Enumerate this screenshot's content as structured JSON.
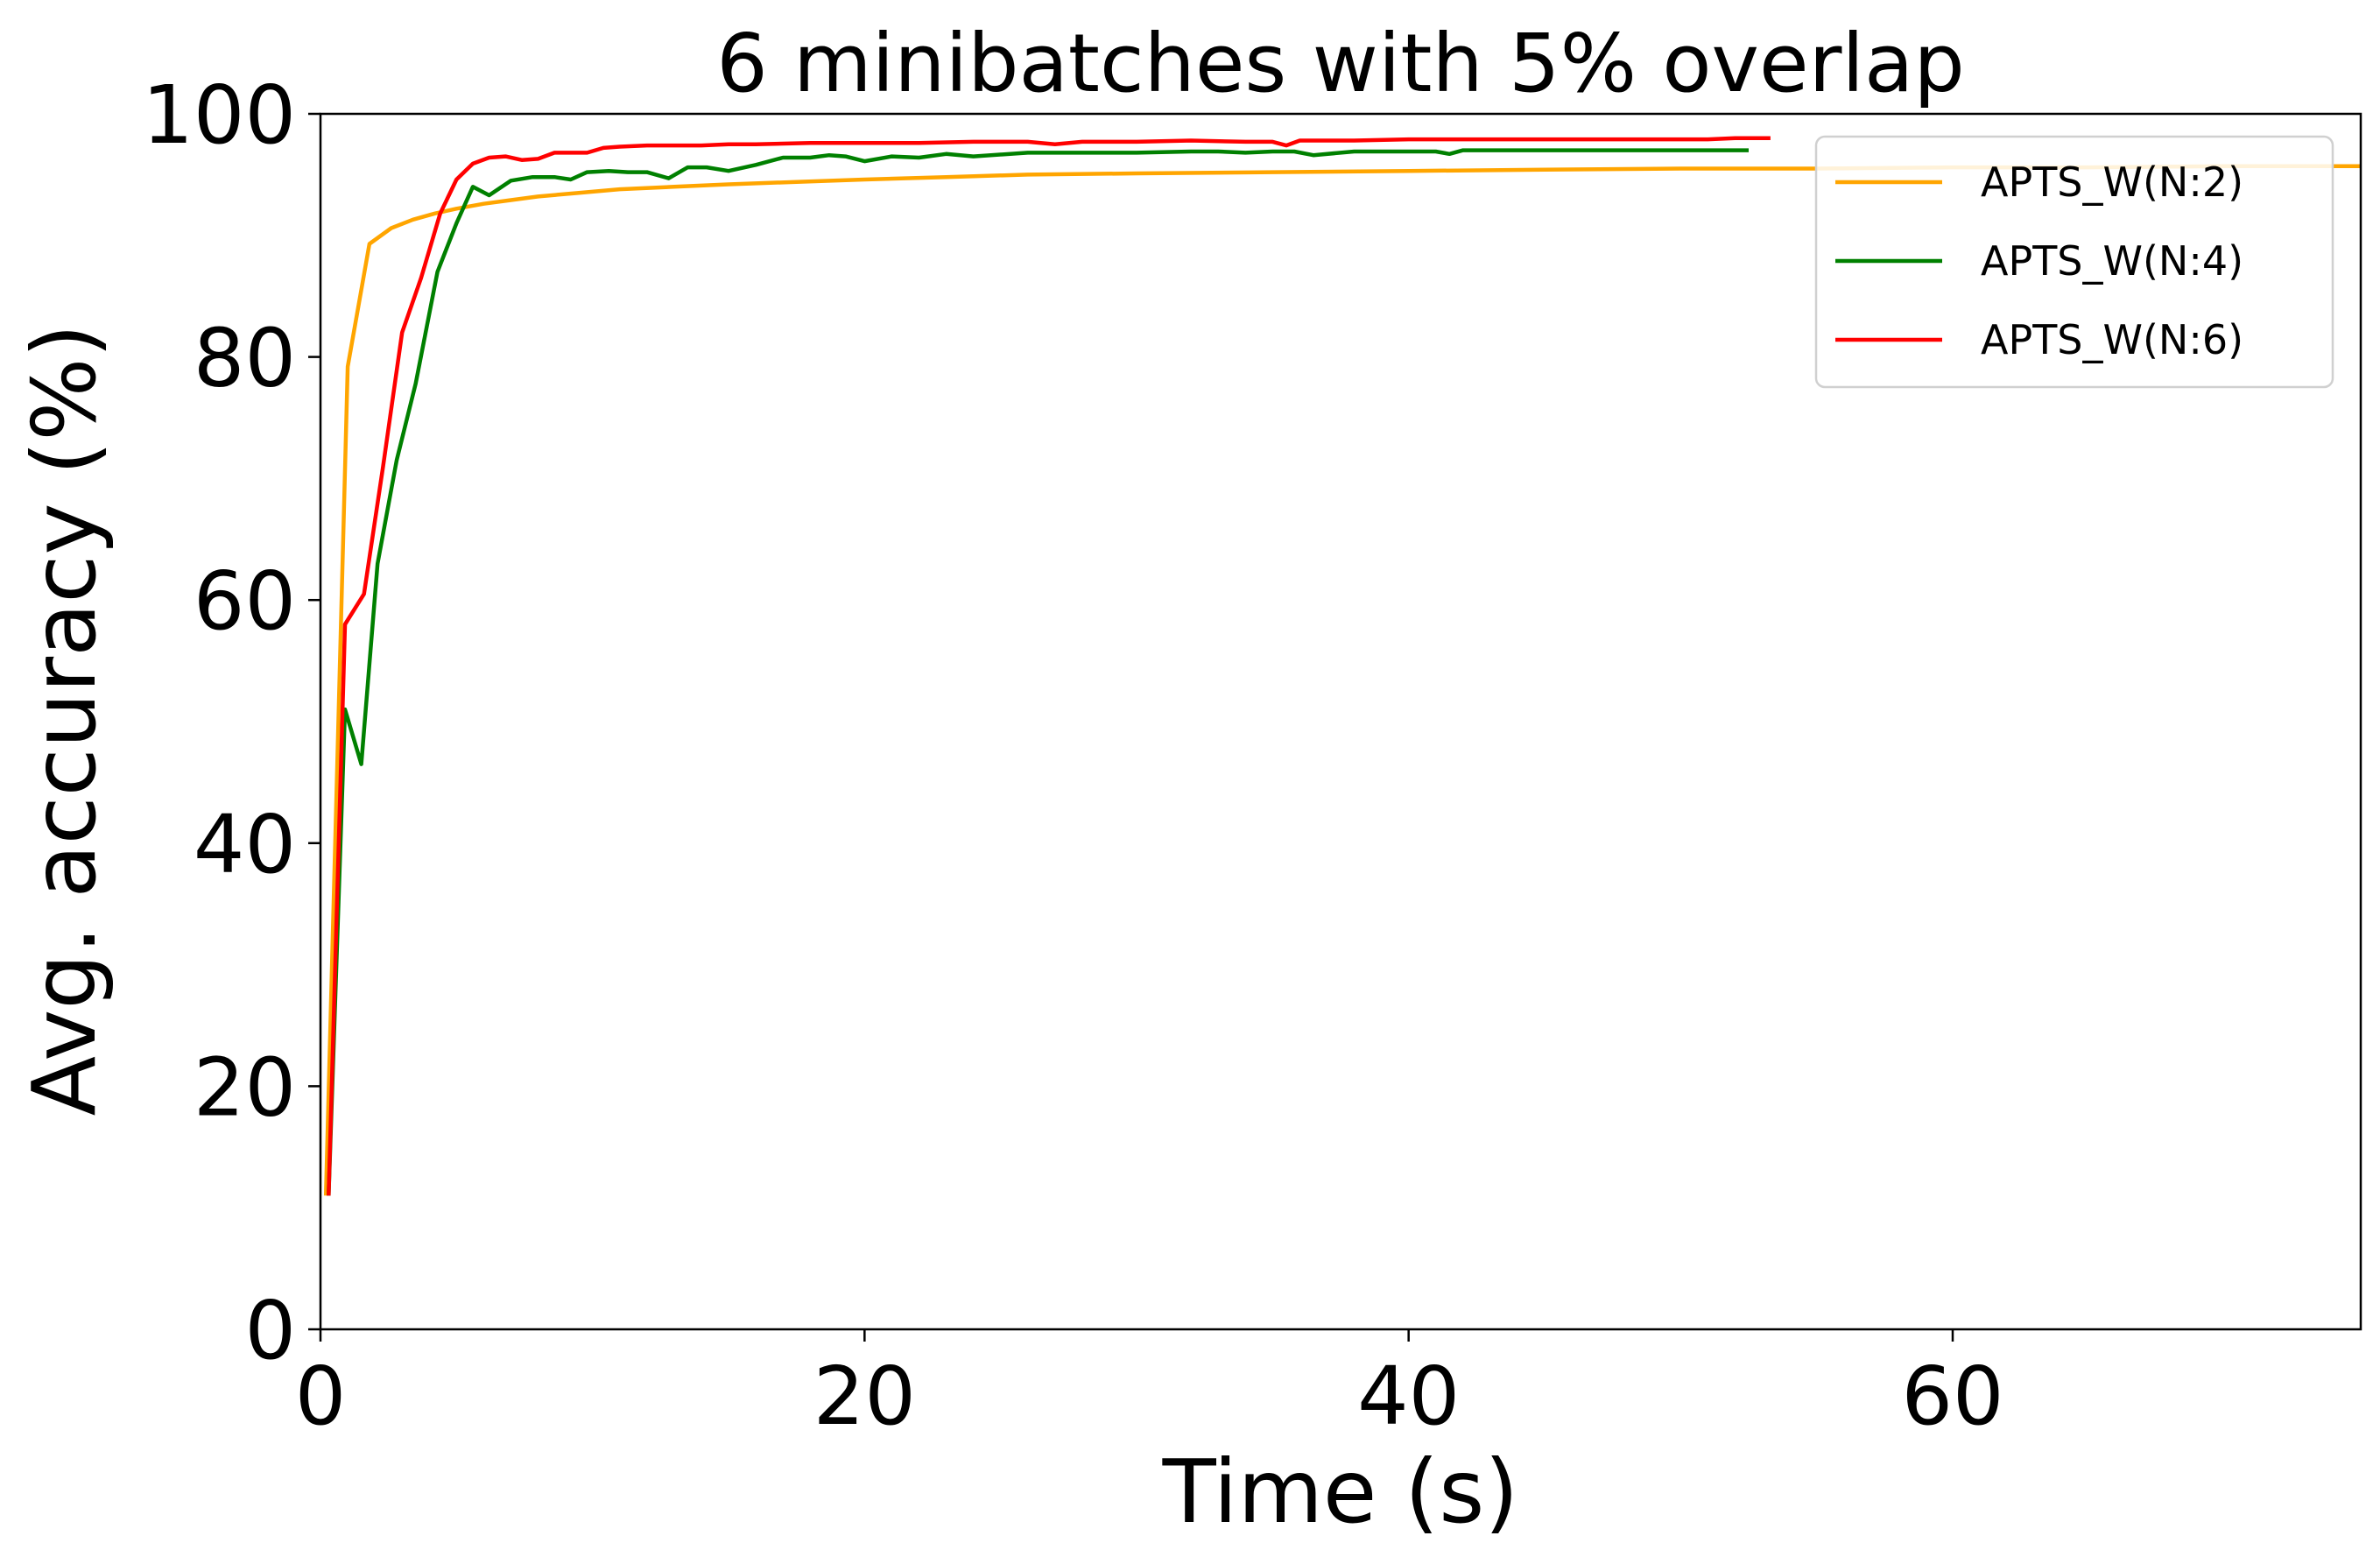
{
  "chart_data": {
    "type": "line",
    "title": "6 minibatches with 5% overlap",
    "xlabel": "Time (s)",
    "ylabel": "Avg. accuracy (%)",
    "xlim": [
      0,
      75
    ],
    "ylim": [
      0,
      100
    ],
    "xticks": [
      0,
      20,
      40,
      60
    ],
    "yticks": [
      0,
      20,
      40,
      60,
      80,
      100
    ],
    "grid": false,
    "legend_position": "top-right",
    "series": [
      {
        "name": "APTS_W(N:2)",
        "color": "#ffa500",
        "x": [
          0.2,
          1.0,
          1.8,
          2.6,
          3.4,
          4.2,
          5.0,
          6.0,
          7.0,
          8.0,
          9.5,
          11.0,
          13.0,
          15.0,
          17.5,
          20.0,
          23.0,
          26.0,
          30.0,
          35.0,
          40.0,
          45.0,
          50.0,
          55.0,
          60.0,
          65.0,
          70.0,
          75.0
        ],
        "y": [
          11.0,
          79.2,
          89.3,
          90.6,
          91.3,
          91.8,
          92.2,
          92.6,
          92.9,
          93.2,
          93.5,
          93.8,
          94.0,
          94.2,
          94.4,
          94.6,
          94.8,
          95.0,
          95.1,
          95.2,
          95.3,
          95.4,
          95.5,
          95.5,
          95.6,
          95.6,
          95.7,
          95.7
        ]
      },
      {
        "name": "APTS_W(N:4)",
        "color": "#008000",
        "x": [
          0.3,
          0.9,
          1.5,
          2.1,
          2.8,
          3.5,
          4.3,
          5.0,
          5.6,
          6.2,
          7.0,
          7.8,
          8.6,
          9.2,
          9.8,
          10.6,
          11.3,
          12.0,
          12.8,
          13.5,
          14.2,
          15.0,
          16.0,
          17.0,
          18.0,
          18.7,
          19.3,
          20.0,
          21.0,
          22.0,
          23.0,
          24.0,
          26.0,
          28.0,
          30.0,
          32.0,
          33.0,
          34.0,
          35.0,
          35.8,
          36.5,
          38.0,
          39.0,
          40.0,
          41.0,
          41.5,
          42.0,
          44.0,
          46.0,
          48.0,
          50.0,
          51.0,
          52.5
        ],
        "y": [
          11.0,
          51.0,
          46.5,
          63.0,
          71.5,
          77.8,
          87.0,
          91.0,
          94.0,
          93.3,
          94.5,
          94.8,
          94.8,
          94.6,
          95.2,
          95.3,
          95.2,
          95.2,
          94.7,
          95.6,
          95.6,
          95.3,
          95.8,
          96.4,
          96.4,
          96.6,
          96.5,
          96.1,
          96.5,
          96.4,
          96.7,
          96.5,
          96.8,
          96.8,
          96.8,
          96.9,
          96.9,
          96.8,
          96.9,
          96.9,
          96.6,
          96.9,
          96.9,
          96.9,
          96.9,
          96.7,
          97.0,
          97.0,
          97.0,
          97.0,
          97.0,
          97.0,
          97.0
        ]
      },
      {
        "name": "APTS_W(N:6)",
        "color": "#ff0000",
        "x": [
          0.3,
          0.9,
          1.6,
          2.3,
          3.0,
          3.7,
          4.4,
          5.0,
          5.6,
          6.2,
          6.8,
          7.4,
          8.0,
          8.6,
          9.2,
          9.8,
          10.4,
          11.0,
          12.0,
          13.0,
          14.0,
          15.0,
          16.0,
          18.0,
          20.0,
          22.0,
          24.0,
          26.0,
          27.0,
          28.0,
          30.0,
          32.0,
          34.0,
          35.0,
          35.5,
          36.0,
          38.0,
          40.0,
          42.0,
          44.0,
          46.0,
          48.0,
          50.0,
          51.0,
          52.0,
          53.3
        ],
        "y": [
          11.0,
          58.0,
          60.5,
          71.0,
          82.0,
          86.5,
          91.8,
          94.6,
          95.9,
          96.4,
          96.5,
          96.2,
          96.3,
          96.8,
          96.8,
          96.8,
          97.2,
          97.3,
          97.4,
          97.4,
          97.4,
          97.5,
          97.5,
          97.6,
          97.6,
          97.6,
          97.7,
          97.7,
          97.5,
          97.7,
          97.7,
          97.8,
          97.7,
          97.7,
          97.4,
          97.8,
          97.8,
          97.9,
          97.9,
          97.9,
          97.9,
          97.9,
          97.9,
          97.9,
          98.0,
          98.0
        ]
      }
    ]
  }
}
